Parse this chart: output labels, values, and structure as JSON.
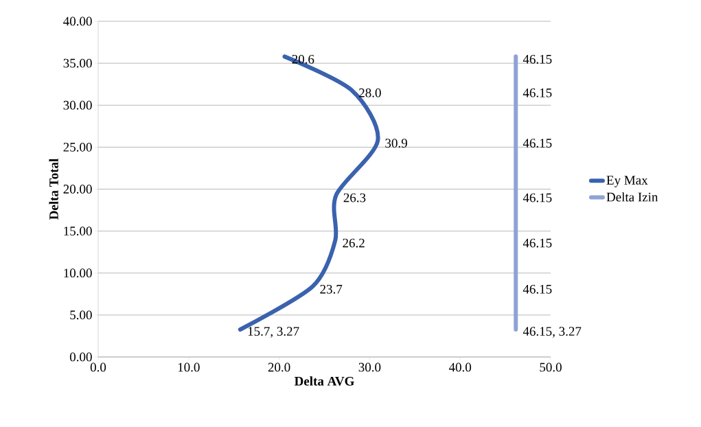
{
  "chart_data": {
    "type": "line",
    "xlabel": "Delta AVG",
    "ylabel": "Delta Total",
    "series": [
      {
        "name": "Ey Max",
        "color": "#3a62ad",
        "x": [
          15.7,
          23.7,
          26.2,
          26.3,
          30.9,
          28.0,
          20.6
        ],
        "values": [
          3.27,
          8.4,
          13.9,
          19.3,
          25.8,
          31.8,
          35.8
        ]
      },
      {
        "name": "Delta Izin",
        "color": "#8fa3d6",
        "x": [
          46.15,
          46.15,
          46.15,
          46.15,
          46.15,
          46.15,
          46.15
        ],
        "values": [
          3.27,
          8.4,
          13.9,
          19.3,
          25.8,
          31.8,
          35.8
        ]
      }
    ],
    "annotations": [
      {
        "text": "15.7, 3.27",
        "x": 15.7,
        "y": 3.27
      },
      {
        "text": "23.7",
        "x": 23.7,
        "y": 8.4
      },
      {
        "text": "26.2",
        "x": 26.2,
        "y": 13.9
      },
      {
        "text": "26.3",
        "x": 26.3,
        "y": 19.3
      },
      {
        "text": "30.9",
        "x": 30.9,
        "y": 25.8
      },
      {
        "text": "28.0",
        "x": 28.0,
        "y": 31.8
      },
      {
        "text": "20.6",
        "x": 20.6,
        "y": 35.8
      },
      {
        "text": "46.15, 3.27",
        "x": 46.15,
        "y": 3.27
      },
      {
        "text": "46.15",
        "x": 46.15,
        "y": 8.4
      },
      {
        "text": "46.15",
        "x": 46.15,
        "y": 13.9
      },
      {
        "text": "46.15",
        "x": 46.15,
        "y": 19.3
      },
      {
        "text": "46.15",
        "x": 46.15,
        "y": 25.8
      },
      {
        "text": "46.15",
        "x": 46.15,
        "y": 31.8
      },
      {
        "text": "46.15",
        "x": 46.15,
        "y": 35.8
      }
    ],
    "xlim": [
      0,
      50
    ],
    "xticks": [
      {
        "value": 0,
        "label": "0.0"
      },
      {
        "value": 10,
        "label": "10.0"
      },
      {
        "value": 20,
        "label": "20.0"
      },
      {
        "value": 30,
        "label": "30.0"
      },
      {
        "value": 40,
        "label": "40.0"
      },
      {
        "value": 50,
        "label": "50.0"
      }
    ],
    "ylim": [
      0,
      40
    ],
    "yticks": [
      {
        "value": 0,
        "label": "0.00"
      },
      {
        "value": 5,
        "label": "5.00"
      },
      {
        "value": 10,
        "label": "10.00"
      },
      {
        "value": 15,
        "label": "15.00"
      },
      {
        "value": 20,
        "label": "20.00"
      },
      {
        "value": 25,
        "label": "25.00"
      },
      {
        "value": 30,
        "label": "30.00"
      },
      {
        "value": 35,
        "label": "35.00"
      },
      {
        "value": 40,
        "label": "40.00"
      }
    ],
    "grid": "y",
    "legend": "right",
    "marker": "none",
    "line_style": "solid"
  }
}
